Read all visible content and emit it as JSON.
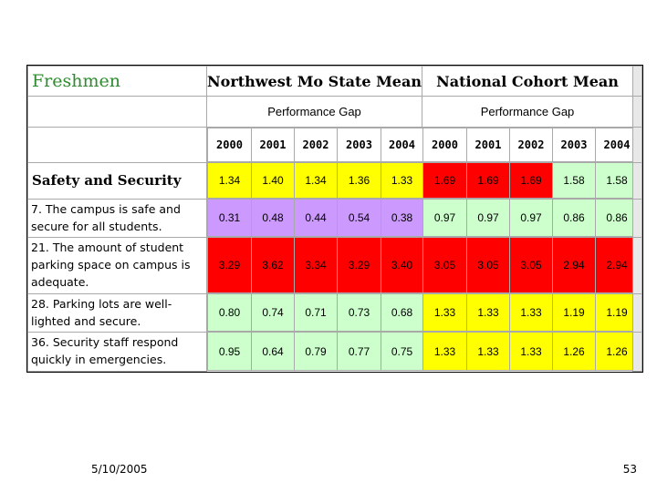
{
  "table": {
    "title": "Freshmen",
    "group_headers": [
      "Northwest Mo State Mean",
      "National Cohort Mean"
    ],
    "gap_labels": [
      "Performance Gap",
      "Performance Gap"
    ],
    "years": [
      "2000",
      "2001",
      "2002",
      "2003",
      "2004",
      "2000",
      "2001",
      "2002",
      "2003",
      "2004"
    ],
    "rows": [
      {
        "label": "Safety and Security",
        "type": "section",
        "values": [
          "1.34",
          "1.40",
          "1.34",
          "1.36",
          "1.33",
          "1.69",
          "1.69",
          "1.69",
          "1.58",
          "1.58"
        ],
        "colors": [
          "#ffff00",
          "#ffff00",
          "#ffff00",
          "#ffff00",
          "#ffff00",
          "#ff0000",
          "#ff0000",
          "#ff0000",
          "#ccffcc",
          "#ccffcc"
        ]
      },
      {
        "label": "7. The campus is safe and secure for all students.",
        "type": "item",
        "values": [
          "0.31",
          "0.48",
          "0.44",
          "0.54",
          "0.38",
          "0.97",
          "0.97",
          "0.97",
          "0.86",
          "0.86"
        ],
        "colors": [
          "#cc99ff",
          "#cc99ff",
          "#cc99ff",
          "#cc99ff",
          "#cc99ff",
          "#ccffcc",
          "#ccffcc",
          "#ccffcc",
          "#ccffcc",
          "#ccffcc"
        ]
      },
      {
        "label": "21. The amount of student parking space on campus is adequate.",
        "type": "item",
        "values": [
          "3.29",
          "3.62",
          "3.34",
          "3.29",
          "3.40",
          "3.05",
          "3.05",
          "3.05",
          "2.94",
          "2.94"
        ],
        "colors": [
          "#ff0000",
          "#ff0000",
          "#ff0000",
          "#ff0000",
          "#ff0000",
          "#ff0000",
          "#ff0000",
          "#ff0000",
          "#ff0000",
          "#ff0000"
        ]
      },
      {
        "label": "28. Parking lots are well-lighted and secure.",
        "type": "item",
        "values": [
          "0.80",
          "0.74",
          "0.71",
          "0.73",
          "0.68",
          "1.33",
          "1.33",
          "1.33",
          "1.19",
          "1.19"
        ],
        "colors": [
          "#ccffcc",
          "#ccffcc",
          "#ccffcc",
          "#ccffcc",
          "#ccffcc",
          "#ffff00",
          "#ffff00",
          "#ffff00",
          "#ffff00",
          "#ffff00"
        ]
      },
      {
        "label": "36. Security staff respond quickly in emergencies.",
        "type": "item",
        "values": [
          "0.95",
          "0.64",
          "0.79",
          "0.77",
          "0.75",
          "1.33",
          "1.33",
          "1.33",
          "1.26",
          "1.26"
        ],
        "colors": [
          "#ccffcc",
          "#ccffcc",
          "#ccffcc",
          "#ccffcc",
          "#ccffcc",
          "#ffff00",
          "#ffff00",
          "#ffff00",
          "#ffff00",
          "#ffff00"
        ]
      }
    ]
  },
  "footer": {
    "date": "5/10/2005",
    "page_number": "53"
  }
}
